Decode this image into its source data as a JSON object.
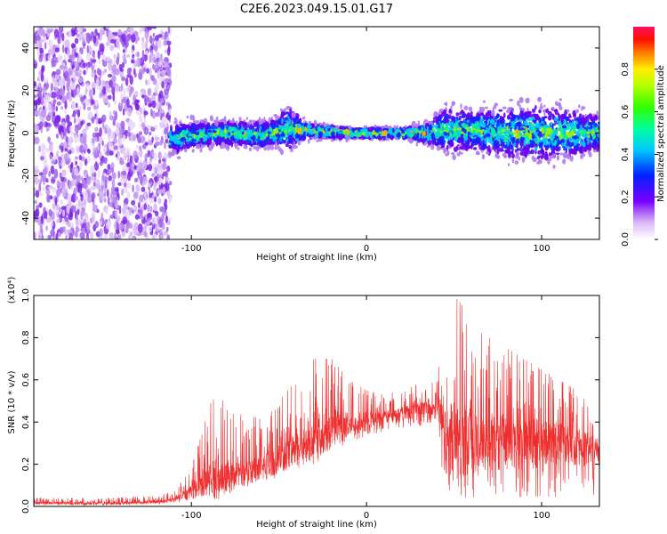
{
  "figure": {
    "title": "C2E6.2023.049.15.01.G17"
  },
  "colors": {
    "spectrogram_background_dots": "#8a2be2",
    "snr_line": "#ee2f2f",
    "axis": "#000000"
  },
  "chart_data": [
    {
      "type": "heatmap",
      "title": "C2E6.2023.049.15.01.G17",
      "xlabel": "Height of straight line (km)",
      "ylabel": "Frequency (Hz)",
      "xlim": [
        -190,
        133
      ],
      "ylim": [
        -50,
        50
      ],
      "x_ticks": [
        -100,
        0,
        100
      ],
      "x_tick_labels": [
        "-100",
        "0",
        "100"
      ],
      "y_ticks": [
        -40,
        -20,
        0,
        20,
        40
      ],
      "y_tick_labels": [
        "-40",
        "-20",
        "0",
        "20",
        "40"
      ],
      "grid": false,
      "colorbar": {
        "label": "Normalized spectral amplitude",
        "range": [
          0,
          1
        ],
        "ticks": [
          0.0,
          0.2,
          0.4,
          0.6,
          0.8
        ],
        "tick_labels": [
          "0.0",
          "0.2",
          "0.4",
          "0.6",
          "0.8"
        ]
      },
      "regions": [
        {
          "name": "broadband noise",
          "x_range": [
            -190,
            -112
          ],
          "freq_range": [
            -50,
            50
          ],
          "amplitude": 0.15
        },
        {
          "name": "signal band",
          "x_range": [
            -112,
            133
          ],
          "amplitude_peak": 0.95
        }
      ],
      "band_center_freq": [
        [
          -112,
          -3
        ],
        [
          -100,
          -1
        ],
        [
          -80,
          0
        ],
        [
          -60,
          -1
        ],
        [
          -45,
          2
        ],
        [
          -30,
          1
        ],
        [
          -10,
          0
        ],
        [
          0,
          0
        ],
        [
          20,
          0
        ],
        [
          35,
          0
        ],
        [
          50,
          2
        ],
        [
          80,
          0
        ],
        [
          110,
          0
        ],
        [
          133,
          0
        ]
      ],
      "band_half_width_hz": [
        [
          -112,
          6
        ],
        [
          -90,
          5
        ],
        [
          -70,
          5
        ],
        [
          -50,
          6
        ],
        [
          -45,
          9
        ],
        [
          -35,
          3
        ],
        [
          -10,
          2
        ],
        [
          20,
          2
        ],
        [
          35,
          4
        ],
        [
          45,
          9
        ],
        [
          60,
          8
        ],
        [
          80,
          10
        ],
        [
          100,
          11
        ],
        [
          120,
          9
        ],
        [
          133,
          7
        ]
      ]
    },
    {
      "type": "line",
      "xlabel": "Height of straight line (km)",
      "ylabel": "SNR (10 * v/v)",
      "y_scale_label": "(x10⁴)",
      "xlim": [
        -190,
        133
      ],
      "ylim": [
        0,
        1.0
      ],
      "x_ticks": [
        -100,
        0,
        100
      ],
      "x_tick_labels": [
        "-100",
        "0",
        "100"
      ],
      "y_ticks": [
        0.0,
        0.2,
        0.4,
        0.6,
        0.8,
        1.0
      ],
      "y_tick_labels": [
        "0.0",
        "0.2",
        "0.4",
        "0.6",
        "0.8",
        "1.0"
      ],
      "grid": false,
      "series": [
        {
          "envelope_x": [
            -190,
            -150,
            -120,
            -110,
            -100,
            -90,
            -85,
            -80,
            -70,
            -60,
            -50,
            -40,
            -30,
            -20,
            -10,
            0,
            10,
            20,
            30,
            40,
            42,
            45,
            50,
            55,
            60,
            70,
            80,
            90,
            100,
            110,
            120,
            125,
            130,
            133
          ],
          "baseline": [
            0.015,
            0.015,
            0.02,
            0.03,
            0.07,
            0.12,
            0.1,
            0.12,
            0.15,
            0.18,
            0.22,
            0.26,
            0.3,
            0.35,
            0.38,
            0.4,
            0.42,
            0.44,
            0.46,
            0.47,
            0.44,
            0.3,
            0.3,
            0.3,
            0.3,
            0.3,
            0.3,
            0.3,
            0.3,
            0.3,
            0.28,
            0.28,
            0.27,
            0.28
          ],
          "upper": [
            0.04,
            0.04,
            0.05,
            0.07,
            0.18,
            0.47,
            0.56,
            0.46,
            0.43,
            0.42,
            0.5,
            0.6,
            0.7,
            0.7,
            0.6,
            0.55,
            0.53,
            0.55,
            0.58,
            0.6,
            0.7,
            0.85,
            1.0,
            0.95,
            0.85,
            0.8,
            0.75,
            0.7,
            0.65,
            0.6,
            0.55,
            0.5,
            0.4,
            0.3
          ],
          "lower": [
            0.005,
            0.005,
            0.01,
            0.015,
            0.03,
            0.06,
            0.05,
            0.07,
            0.09,
            0.1,
            0.14,
            0.18,
            0.2,
            0.25,
            0.3,
            0.33,
            0.35,
            0.37,
            0.38,
            0.4,
            0.2,
            0.04,
            0.04,
            0.04,
            0.04,
            0.04,
            0.04,
            0.04,
            0.04,
            0.04,
            0.04,
            0.04,
            0.04,
            0.2
          ]
        }
      ]
    }
  ]
}
